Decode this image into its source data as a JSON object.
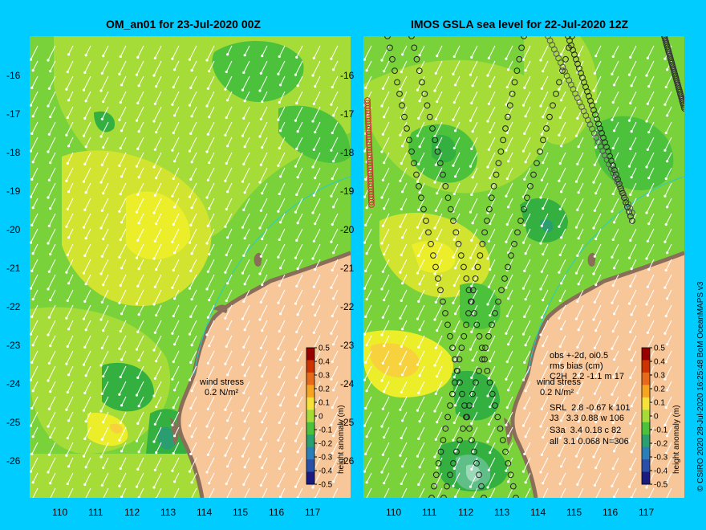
{
  "left_panel": {
    "title": "OM_an01 for 23-Jul-2020 00Z",
    "wind_legend": {
      "label": "wind stress",
      "value": "0.2 N/m²"
    }
  },
  "right_panel": {
    "title": "IMOS GSLA sea level  for 22-Jul-2020 12Z",
    "wind_legend": {
      "label": "wind stress",
      "value": "0.2 N/m²"
    },
    "obs_header": [
      "obs +-2d, oi0.5",
      "rms bias (cm)"
    ],
    "obs_rows": [
      "C2H  2.2 -1.1 m 17",
      "SRL  2.8 -0.67 k 101",
      "J3   3.3 0.88 w 106",
      "S3a  3.4 0.18 c 82",
      "all  3.1 0.068 N=306"
    ]
  },
  "colorbar": {
    "title": "height anomaly (m)",
    "ticks": [
      "0.5",
      "0.4",
      "0.3",
      "0.2",
      "0.1",
      "0",
      "-0.1",
      "-0.2",
      "-0.3",
      "-0.4",
      "-0.5"
    ]
  },
  "axes": {
    "lat_ticks": [
      "-16",
      "-17",
      "-18",
      "-19",
      "-20",
      "-21",
      "-22",
      "-23",
      "-24",
      "-25",
      "-26"
    ],
    "lon_ticks": [
      "110",
      "111",
      "112",
      "113",
      "114",
      "115",
      "116",
      "117"
    ]
  },
  "credit": "© CSIRO 2020   28-Jul-2020 16:25:48 BoM OceanMAPS v3",
  "colors": {
    "background": "#00ccff",
    "land": "#f7c79a",
    "base": "#7ad23a"
  }
}
